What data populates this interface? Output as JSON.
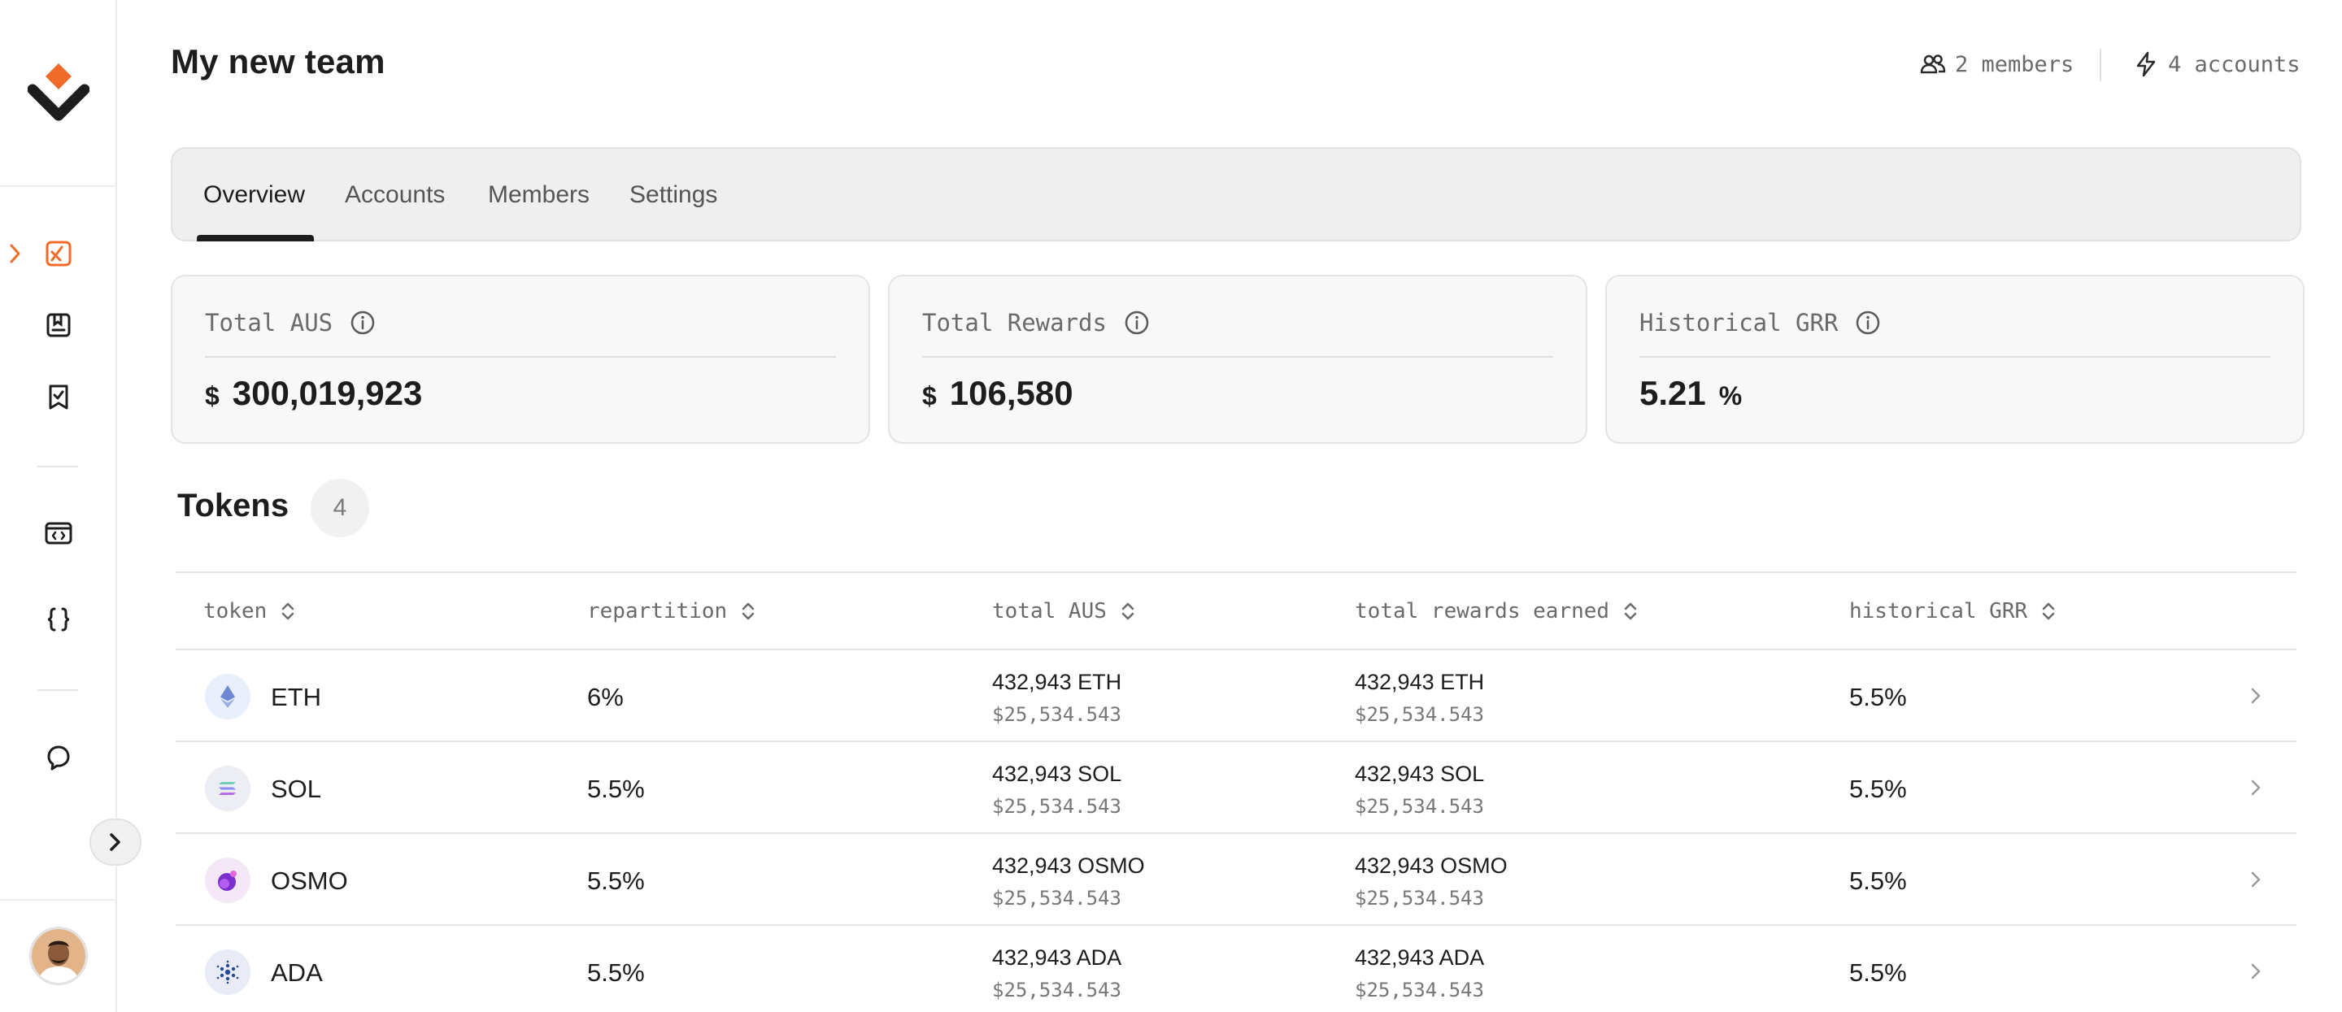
{
  "colors": {
    "accent": "#f06a28",
    "text": "#1d1d1d",
    "muted": "#6a6a6a",
    "border": "#e4e4e4",
    "tab_bg": "#efefef"
  },
  "sidebar": {
    "items": [
      {
        "icon": "portfolio-icon",
        "active": true
      },
      {
        "icon": "bookmark-list-icon",
        "active": false
      },
      {
        "icon": "bookmark-check-icon",
        "active": false
      },
      {
        "icon": "code-window-icon",
        "active": false
      },
      {
        "icon": "braces-icon",
        "active": false
      },
      {
        "icon": "support-chat-icon",
        "active": false
      }
    ]
  },
  "header": {
    "title": "My new team",
    "members": "2 members",
    "accounts": "4 accounts"
  },
  "tabs": [
    {
      "label": "Overview",
      "active": true
    },
    {
      "label": "Accounts",
      "active": false
    },
    {
      "label": "Members",
      "active": false
    },
    {
      "label": "Settings",
      "active": false
    }
  ],
  "stats": [
    {
      "label": "Total AUS",
      "currency": "$",
      "value": "300,019,923",
      "suffix": ""
    },
    {
      "label": "Total Rewards",
      "currency": "$",
      "value": "106,580",
      "suffix": ""
    },
    {
      "label": "Historical GRR",
      "currency": "",
      "value": "5.21",
      "suffix": "%"
    }
  ],
  "tokens": {
    "title": "Tokens",
    "count": "4",
    "columns": [
      "token",
      "repartition",
      "total AUS",
      "total rewards earned",
      "historical GRR"
    ],
    "rows": [
      {
        "token": "ETH",
        "repartition": "6%",
        "aus_amount": "432,943 ETH",
        "aus_usd": "$25,534.543",
        "rewards_amount": "432,943 ETH",
        "rewards_usd": "$25,534.543",
        "grr": "5.5%"
      },
      {
        "token": "SOL",
        "repartition": "5.5%",
        "aus_amount": "432,943 SOL",
        "aus_usd": "$25,534.543",
        "rewards_amount": "432,943 SOL",
        "rewards_usd": "$25,534.543",
        "grr": "5.5%"
      },
      {
        "token": "OSMO",
        "repartition": "5.5%",
        "aus_amount": "432,943 OSMO",
        "aus_usd": "$25,534.543",
        "rewards_amount": "432,943 OSMO",
        "rewards_usd": "$25,534.543",
        "grr": "5.5%"
      },
      {
        "token": "ADA",
        "repartition": "5.5%",
        "aus_amount": "432,943 ADA",
        "aus_usd": "$25,534.543",
        "rewards_amount": "432,943 ADA",
        "rewards_usd": "$25,534.543",
        "grr": "5.5%"
      }
    ]
  }
}
